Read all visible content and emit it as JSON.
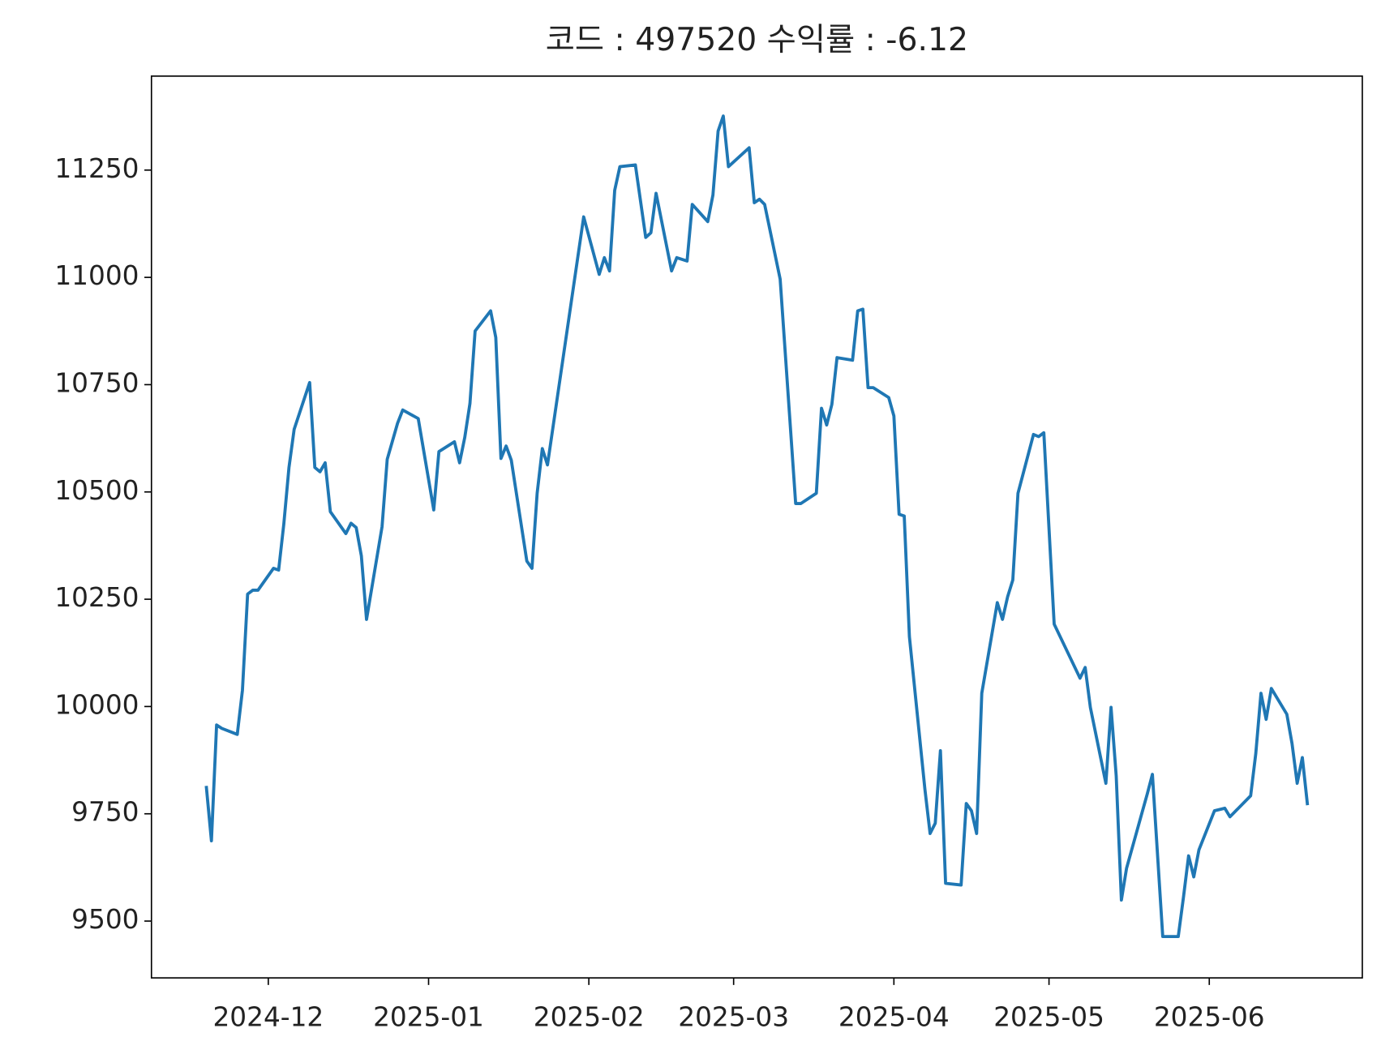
{
  "chart_data": {
    "type": "line",
    "title": "코드 : 497520 수익률 : -6.12",
    "x": [
      -12,
      -11,
      -10,
      -9,
      -6,
      -5,
      -4,
      -3,
      -2,
      1,
      2,
      3,
      4,
      5,
      8,
      9,
      10,
      11,
      12,
      15,
      16,
      17,
      18,
      19,
      22,
      23,
      25,
      26,
      29,
      32,
      33,
      36,
      37,
      38,
      39,
      40,
      43,
      44,
      45,
      46,
      47,
      50,
      51,
      52,
      53,
      54,
      61,
      64,
      65,
      66,
      67,
      68,
      71,
      73,
      74,
      75,
      78,
      79,
      81,
      82,
      85,
      86,
      87,
      88,
      89,
      93,
      94,
      95,
      96,
      99,
      102,
      103,
      106,
      107,
      108,
      109,
      110,
      113,
      114,
      115,
      116,
      117,
      120,
      121,
      122,
      123,
      124,
      127,
      128,
      129,
      130,
      131,
      134,
      135,
      136,
      137,
      138,
      141,
      142,
      143,
      144,
      145,
      148,
      149,
      150,
      152,
      157,
      158,
      159,
      162,
      163,
      164,
      165,
      166,
      169,
      170,
      171,
      173,
      176,
      177,
      178,
      179,
      180,
      183,
      185,
      186,
      190,
      191,
      192,
      193,
      194,
      197,
      198,
      199,
      200,
      201
    ],
    "series": [
      {
        "color": "#1f77b4",
        "values": [
          9815,
          9687,
          9957,
          9949,
          9935,
          10038,
          10262,
          10271,
          10271,
          10322,
          10318,
          10425,
          10557,
          10646,
          10755,
          10557,
          10547,
          10568,
          10454,
          10403,
          10427,
          10417,
          10351,
          10203,
          10419,
          10576,
          10660,
          10691,
          10671,
          10458,
          10594,
          10617,
          10568,
          10627,
          10706,
          10875,
          10922,
          10860,
          10578,
          10607,
          10574,
          10339,
          10322,
          10497,
          10601,
          10563,
          11141,
          11007,
          11046,
          11015,
          11203,
          11258,
          11262,
          11093,
          11104,
          11196,
          11015,
          11046,
          11038,
          11170,
          11130,
          11192,
          11341,
          11376,
          11258,
          11302,
          11174,
          11182,
          11170,
          10996,
          10473,
          10473,
          10497,
          10695,
          10656,
          10704,
          10813,
          10807,
          10922,
          10926,
          10743,
          10743,
          10720,
          10677,
          10448,
          10444,
          10163,
          9807,
          9704,
          9728,
          9897,
          9588,
          9584,
          9774,
          9757,
          9704,
          10031,
          10242,
          10203,
          10256,
          10295,
          10497,
          10634,
          10629,
          10638,
          10192,
          10066,
          10091,
          9998,
          9821,
          9998,
          9838,
          9549,
          9623,
          9753,
          9796,
          9842,
          9464,
          9464,
          9555,
          9652,
          9603,
          9666,
          9757,
          9763,
          9743,
          9792,
          9891,
          10031,
          9970,
          10042,
          9982,
          9914,
          9821,
          9881,
          9770
        ]
      }
    ],
    "xlim": [
      -22.6,
      211.6
    ],
    "xticks": [
      {
        "value": 0,
        "label": "2024-12"
      },
      {
        "value": 31,
        "label": "2025-01"
      },
      {
        "value": 62,
        "label": "2025-02"
      },
      {
        "value": 90,
        "label": "2025-03"
      },
      {
        "value": 121,
        "label": "2025-04"
      },
      {
        "value": 151,
        "label": "2025-05"
      },
      {
        "value": 182,
        "label": "2025-06"
      }
    ],
    "ylim": [
      9367.6,
      11469
    ],
    "yticks": [
      9500,
      9750,
      10000,
      10250,
      10500,
      10750,
      11000,
      11250
    ]
  }
}
